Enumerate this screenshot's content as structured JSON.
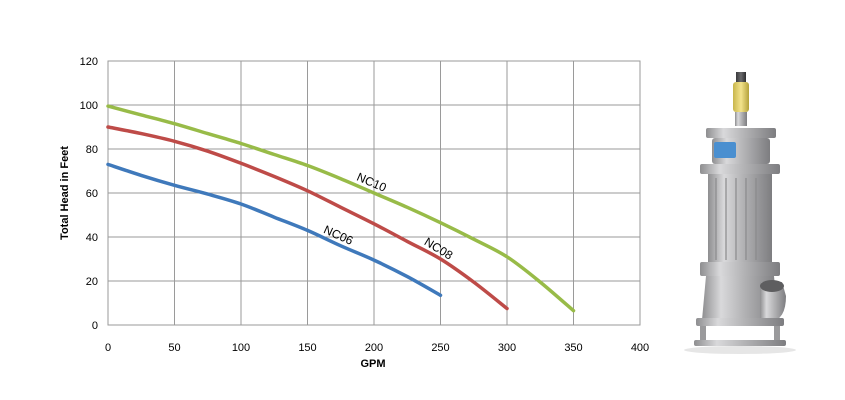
{
  "chart_data": {
    "type": "line",
    "xlabel": "GPM",
    "ylabel": "Total Head in Feet",
    "xlim": [
      0,
      400
    ],
    "ylim": [
      0,
      120
    ],
    "xticks": [
      0,
      50,
      100,
      150,
      200,
      250,
      300,
      350,
      400
    ],
    "yticks": [
      0,
      20,
      40,
      60,
      80,
      100,
      120
    ],
    "grid": true,
    "legend": "inline labels on curves",
    "series": [
      {
        "name": "NC06",
        "color": "#3f79bb",
        "x": [
          0,
          25,
          50,
          75,
          100,
          125,
          150,
          175,
          200,
          225,
          250
        ],
        "y": [
          73,
          68,
          63.5,
          59.5,
          55,
          49,
          43,
          36,
          29.5,
          22,
          13.5
        ]
      },
      {
        "name": "NC08",
        "color": "#be4b48",
        "x": [
          0,
          25,
          50,
          75,
          100,
          125,
          150,
          175,
          200,
          225,
          250,
          275,
          300
        ],
        "y": [
          90,
          87,
          83.5,
          79,
          73.5,
          67.5,
          61,
          53.5,
          46,
          38,
          30,
          19.5,
          7.5
        ]
      },
      {
        "name": "NC10",
        "color": "#98bb48",
        "x": [
          0,
          25,
          50,
          75,
          100,
          125,
          150,
          175,
          200,
          225,
          250,
          275,
          300,
          325,
          350
        ],
        "y": [
          99.5,
          95.5,
          91.5,
          87,
          82.5,
          77.5,
          72.5,
          66.5,
          60,
          53.5,
          46.5,
          39,
          31,
          19.5,
          6.5
        ]
      }
    ]
  },
  "product_image": {
    "icon": "submersible-pump-icon",
    "body_color": "#b9b9bb",
    "badge_color": "#4a8fd0"
  }
}
